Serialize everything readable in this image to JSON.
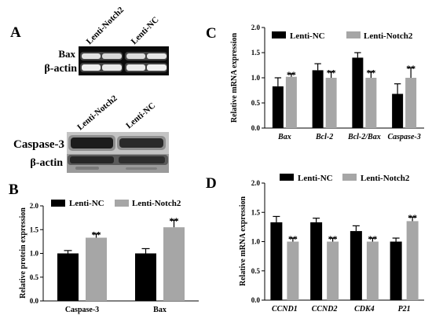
{
  "figure": {
    "panel_a": {
      "label": "A",
      "blot_top": {
        "lanes": [
          "Lenti-Notch2",
          "Lenti-NC"
        ],
        "rows": [
          "Bax",
          "β-actin"
        ]
      },
      "blot_bottom": {
        "lanes": [
          "Lenti-Notch2",
          "Lenti-NC"
        ],
        "rows": [
          "Caspase-3",
          "β-actin"
        ]
      }
    }
  },
  "chart_data": [
    {
      "panel_label": "B",
      "type": "bar",
      "categories": [
        "Caspase-3",
        "Bax"
      ],
      "italic_categories": false,
      "series": [
        {
          "name": "Lenti-NC",
          "color": "#000000",
          "values": [
            1.0,
            1.0
          ],
          "errors": [
            0.06,
            0.1
          ]
        },
        {
          "name": "Lenti-Notch2",
          "color": "#a6a6a6",
          "values": [
            1.33,
            1.55
          ],
          "errors": [
            0.08,
            0.15
          ],
          "significance": [
            "**",
            "**"
          ]
        }
      ],
      "ylabel": "Relative protein expression",
      "ylim": [
        0,
        2
      ],
      "yticks": [
        "0.0",
        "0.5",
        "1.0",
        "1.5",
        "2.0"
      ],
      "legend": "top",
      "grid": false
    },
    {
      "panel_label": "C",
      "type": "bar",
      "categories": [
        "Bax",
        "Bcl-2",
        "Bcl-2/Bax",
        "Caspase-3"
      ],
      "italic_categories": true,
      "series": [
        {
          "name": "Lenti-NC",
          "color": "#000000",
          "values": [
            0.83,
            1.15,
            1.4,
            0.68
          ],
          "errors": [
            0.17,
            0.13,
            0.1,
            0.2
          ]
        },
        {
          "name": "Lenti-Notch2",
          "color": "#a6a6a6",
          "values": [
            1.02,
            1.0,
            1.0,
            1.0
          ],
          "errors": [
            0.06,
            0.12,
            0.12,
            0.2
          ],
          "significance": [
            "**",
            "**",
            "**",
            "**"
          ]
        }
      ],
      "ylabel": "Relative mRNA expression",
      "ylim": [
        0,
        2
      ],
      "yticks": [
        "0.0",
        "0.5",
        "1.0",
        "1.5",
        "2.0"
      ],
      "legend": "top",
      "grid": false
    },
    {
      "panel_label": "D",
      "type": "bar",
      "categories": [
        "CCND1",
        "CCND2",
        "CDK4",
        "P21"
      ],
      "italic_categories": true,
      "series": [
        {
          "name": "Lenti-NC",
          "color": "#000000",
          "values": [
            1.33,
            1.33,
            1.18,
            1.0
          ],
          "errors": [
            0.1,
            0.07,
            0.09,
            0.06
          ]
        },
        {
          "name": "Lenti-Notch2",
          "color": "#a6a6a6",
          "values": [
            1.0,
            1.0,
            1.0,
            1.35
          ],
          "errors": [
            0.06,
            0.06,
            0.06,
            0.07
          ],
          "significance": [
            "**",
            "**",
            "**",
            "**"
          ]
        }
      ],
      "ylabel": "Relative mRNA expression",
      "ylim": [
        0,
        2
      ],
      "yticks": [
        "0.0",
        "0.5",
        "1.0",
        "1.5",
        "2.0"
      ],
      "legend": "top",
      "grid": false
    }
  ]
}
